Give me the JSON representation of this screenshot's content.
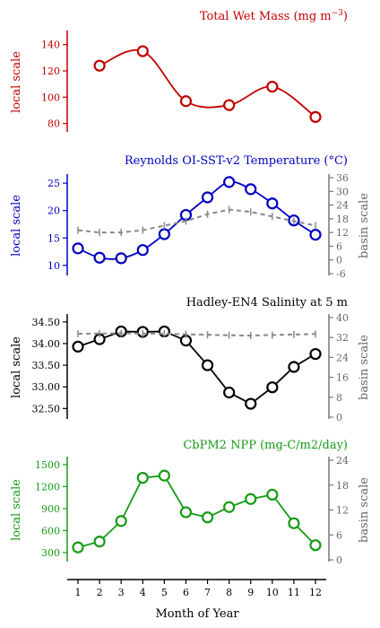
{
  "chart_data": [
    {
      "type": "line",
      "title": "Total Wet Mass (mg m",
      "title_sup": "−3",
      "title_suffix": ")",
      "color": "#c00000",
      "ylabel_left": "local scale",
      "ylim_left": [
        75,
        148
      ],
      "yticks_left": [
        80,
        100,
        120,
        140
      ],
      "series": [
        {
          "values": [
            null,
            124,
            null,
            135,
            null,
            97,
            null,
            94,
            null,
            108,
            null,
            85
          ],
          "curve": "smooth"
        }
      ]
    },
    {
      "type": "line",
      "title": "Reynolds OI-SST-v2 Temperature (°C)",
      "color": "#0000c0",
      "ylabel_left": "local scale",
      "ylabel_right": "basin scale",
      "ylim_left": [
        8.5,
        26
      ],
      "yticks_left": [
        10,
        15,
        20,
        25
      ],
      "ylim_right": [
        -6,
        36
      ],
      "yticks_right": [
        -6,
        0,
        6,
        12,
        18,
        24,
        30,
        36
      ],
      "series": [
        {
          "values": [
            13.1,
            11.4,
            11.3,
            12.8,
            15.7,
            19.2,
            22.4,
            25.2,
            23.9,
            21.3,
            18.2,
            15.6
          ],
          "curve": "smooth"
        },
        {
          "axis": "right",
          "dashed": true,
          "color": "#888888",
          "values": [
            13,
            12,
            12,
            13,
            15,
            17,
            20,
            22,
            21,
            19,
            17,
            15
          ]
        }
      ]
    },
    {
      "type": "line",
      "title": "Hadley-EN4 Salinity at 5 m",
      "color": "#000000",
      "ylabel_left": "local scale",
      "ylabel_right": "basin scale",
      "ylim_left": [
        32.3,
        34.6
      ],
      "yticks_left": [
        "32.50",
        "33.00",
        "33.50",
        "34.00",
        "34.50"
      ],
      "ylim_right": [
        0,
        40
      ],
      "yticks_right": [
        0,
        8,
        16,
        24,
        32,
        40
      ],
      "series": [
        {
          "values": [
            33.93,
            34.1,
            34.28,
            34.27,
            34.28,
            34.07,
            33.5,
            32.87,
            32.61,
            32.99,
            33.46,
            33.76
          ]
        },
        {
          "axis": "right",
          "dashed": true,
          "color": "#888888",
          "values": [
            33.5,
            33.6,
            33.7,
            33.6,
            33.5,
            33.3,
            33.1,
            32.9,
            32.8,
            33.0,
            33.2,
            33.4
          ]
        }
      ]
    },
    {
      "type": "line",
      "title": "CbPM2 NPP (mg-C/m2/day)",
      "color": "#159b15",
      "ylabel_left": "local scale",
      "ylabel_right": "basin scale",
      "ylim_left": [
        200,
        1560
      ],
      "yticks_left": [
        300,
        600,
        900,
        1200,
        1500
      ],
      "ylim_right": [
        0,
        24
      ],
      "yticks_right": [
        0,
        6,
        12,
        18,
        24
      ],
      "series": [
        {
          "values": [
            370,
            450,
            730,
            1320,
            1350,
            850,
            780,
            920,
            1030,
            1090,
            700,
            400
          ]
        }
      ]
    }
  ],
  "x_axis": {
    "label": "Month of Year",
    "ticks": [
      1,
      2,
      3,
      4,
      5,
      6,
      7,
      8,
      9,
      10,
      11,
      12
    ]
  }
}
